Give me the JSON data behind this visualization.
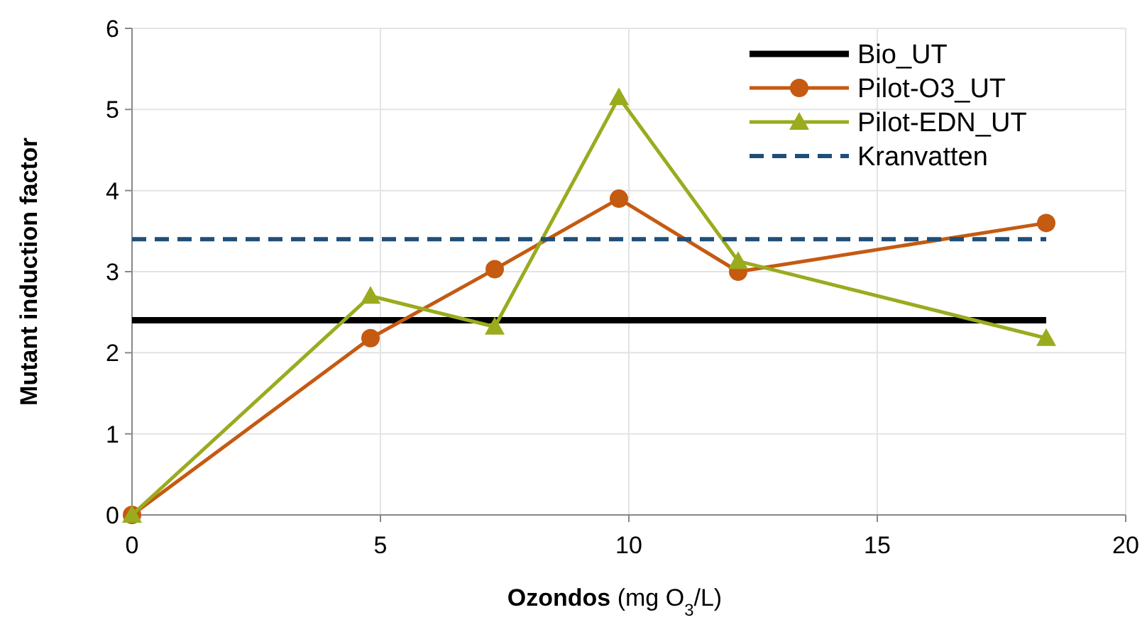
{
  "chart_data": {
    "type": "line",
    "xlabel": "Ozondos (mg O$_{3}$/L)",
    "ylabel": "Mutant induction factor",
    "xlim": [
      0,
      20
    ],
    "xticks": [
      0,
      5,
      10,
      15,
      20
    ],
    "ylim": [
      0,
      6
    ],
    "yticks": [
      0,
      1,
      2,
      3,
      4,
      5,
      6
    ],
    "grid": true,
    "legend": "top right",
    "series": [
      {
        "name": "Bio_UT",
        "color": "#000000",
        "x": [
          0,
          18.4
        ],
        "values": [
          2.4,
          2.4
        ],
        "marker": "none",
        "line_style": "solid"
      },
      {
        "name": "Pilot-O3_UT",
        "color": "#c55a11",
        "x": [
          0,
          4.8,
          7.3,
          9.8,
          12.2,
          18.4
        ],
        "values": [
          0,
          2.18,
          3.03,
          3.9,
          3.0,
          3.6
        ],
        "marker": "circle",
        "line_style": "solid"
      },
      {
        "name": "Pilot-EDN_UT",
        "color": "#9aab1e",
        "x": [
          0,
          4.8,
          7.3,
          9.8,
          12.2,
          18.4
        ],
        "values": [
          0,
          2.7,
          2.32,
          5.15,
          3.13,
          2.18
        ],
        "marker": "triangle",
        "line_style": "solid"
      },
      {
        "name": "Kranvatten",
        "color": "#1f4e79",
        "x": [
          0,
          18.4
        ],
        "values": [
          3.4,
          3.4
        ],
        "marker": "none",
        "line_style": "dashed"
      }
    ]
  }
}
